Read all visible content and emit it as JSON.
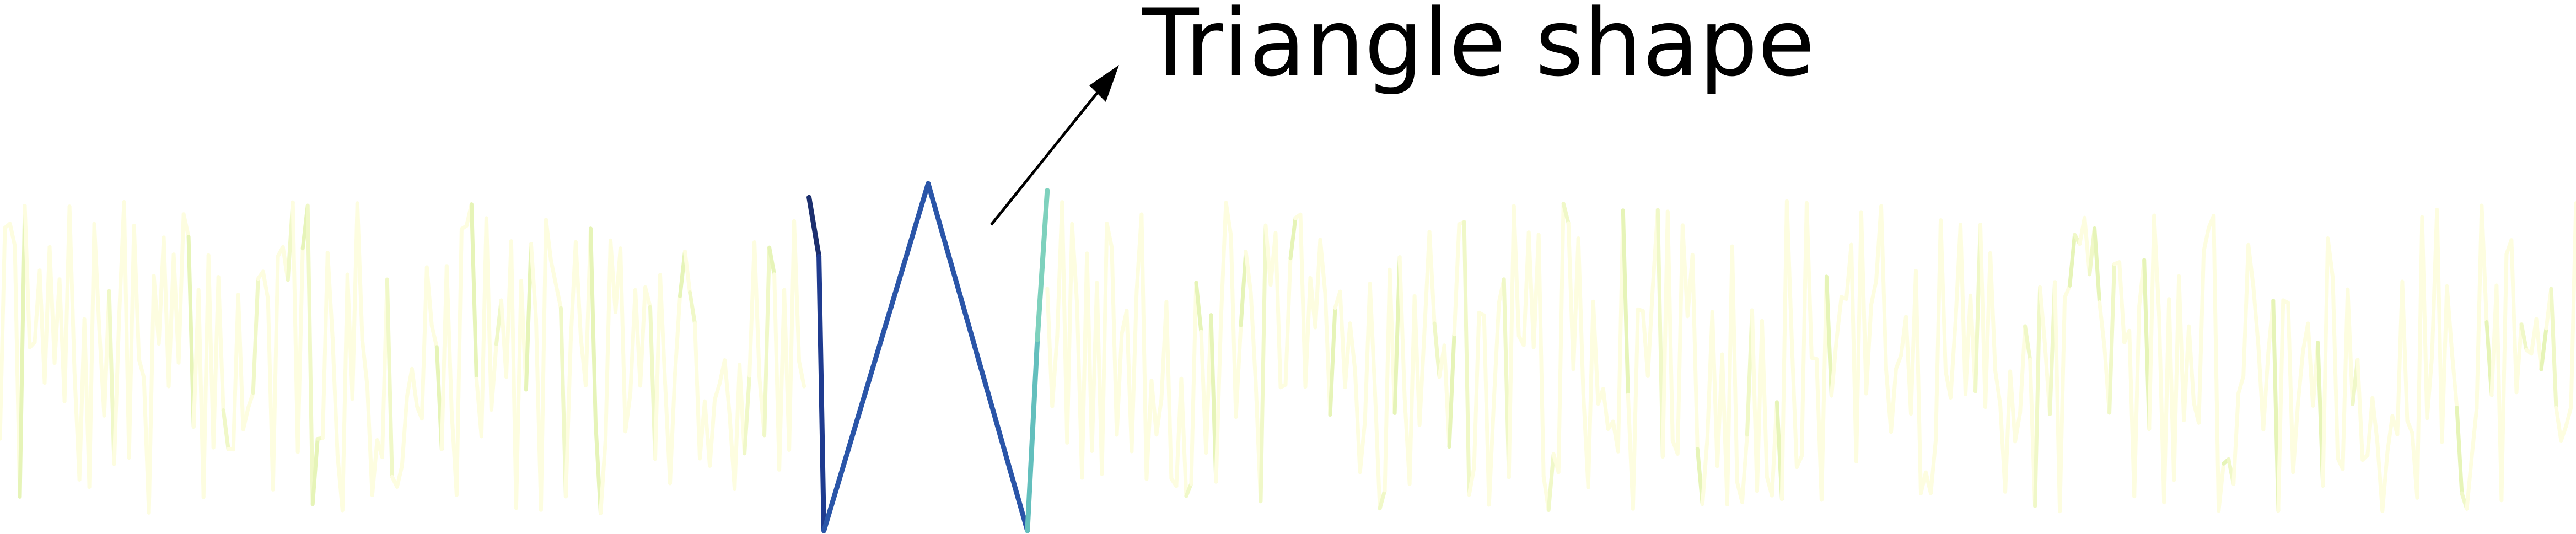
{
  "chart_data": {
    "type": "line",
    "title": "",
    "xlabel": "",
    "ylabel": "",
    "grid": false,
    "legend": false,
    "ylim": [
      0,
      1
    ],
    "x_count": 520,
    "background_color": "#fdfde0",
    "noise_seed": 7,
    "triangle": {
      "description_hidden": true,
      "x": [
        163,
        165,
        166,
        187,
        207,
        209,
        211
      ],
      "y": [
        0.96,
        0.79,
        0.0,
        1.0,
        0.0,
        0.55,
        0.98
      ],
      "colors": [
        "#1c2f6e",
        "#1f3b8f",
        "#2a55a8",
        "#2a55a8",
        "#63bfbd",
        "#7ed1bd"
      ]
    },
    "annotations": [
      {
        "text": "Triangle shape",
        "arrow_color": "#000000"
      }
    ]
  }
}
